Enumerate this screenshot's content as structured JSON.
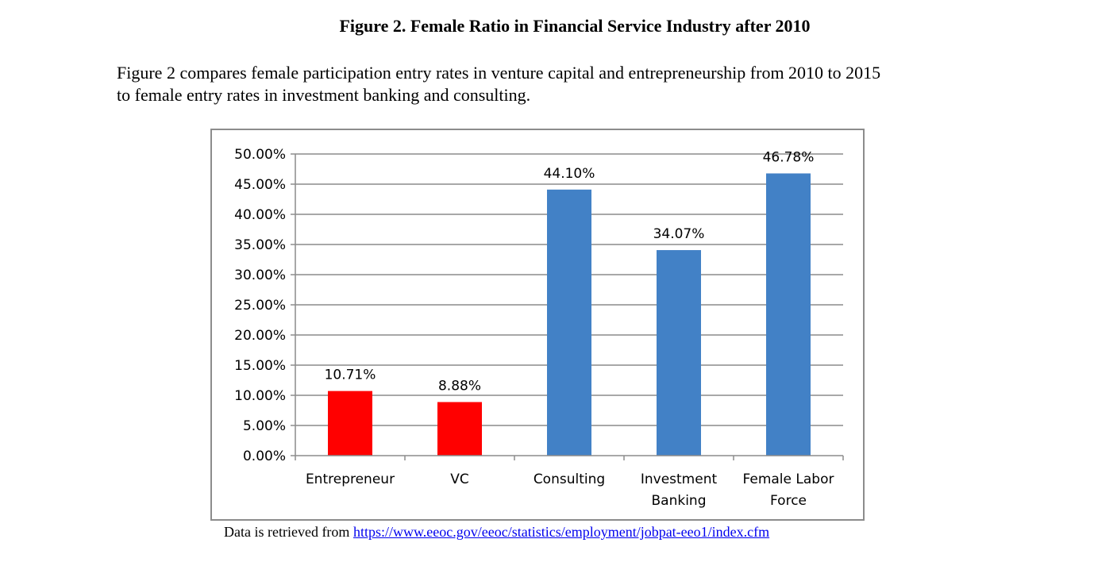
{
  "figure": {
    "title": "Figure 2. Female Ratio in Financial Service Industry after 2010",
    "caption_line1": "Figure 2 compares female participation entry rates in venture capital and entrepreneurship from 2010 to 2015",
    "caption_line2": "to female entry rates in investment banking and consulting."
  },
  "source": {
    "prefix": "Data is retrieved from ",
    "link_text": "https://www.eeoc.gov/eeoc/statistics/employment/jobpat-eeo1/index.cfm"
  },
  "chart_data": {
    "type": "bar",
    "title": "",
    "xlabel": "",
    "ylabel": "",
    "ylim": [
      0,
      50
    ],
    "yticks": [
      0,
      5,
      10,
      15,
      20,
      25,
      30,
      35,
      40,
      45,
      50
    ],
    "ytick_labels": [
      "0.00%",
      "5.00%",
      "10.00%",
      "15.00%",
      "20.00%",
      "25.00%",
      "30.00%",
      "35.00%",
      "40.00%",
      "45.00%",
      "50.00%"
    ],
    "grid": true,
    "legend": "none",
    "categories": [
      [
        "Entrepreneur"
      ],
      [
        "VC"
      ],
      [
        "Consulting"
      ],
      [
        "Investment",
        "Banking"
      ],
      [
        "Female Labor",
        "Force"
      ]
    ],
    "values": [
      10.71,
      8.88,
      44.1,
      34.07,
      46.78
    ],
    "data_labels": [
      "10.71%",
      "8.88%",
      "44.10%",
      "34.07%",
      "46.78%"
    ],
    "colors": [
      "#ff0000",
      "#ff0000",
      "#4281c6",
      "#4281c6",
      "#4281c6"
    ]
  }
}
